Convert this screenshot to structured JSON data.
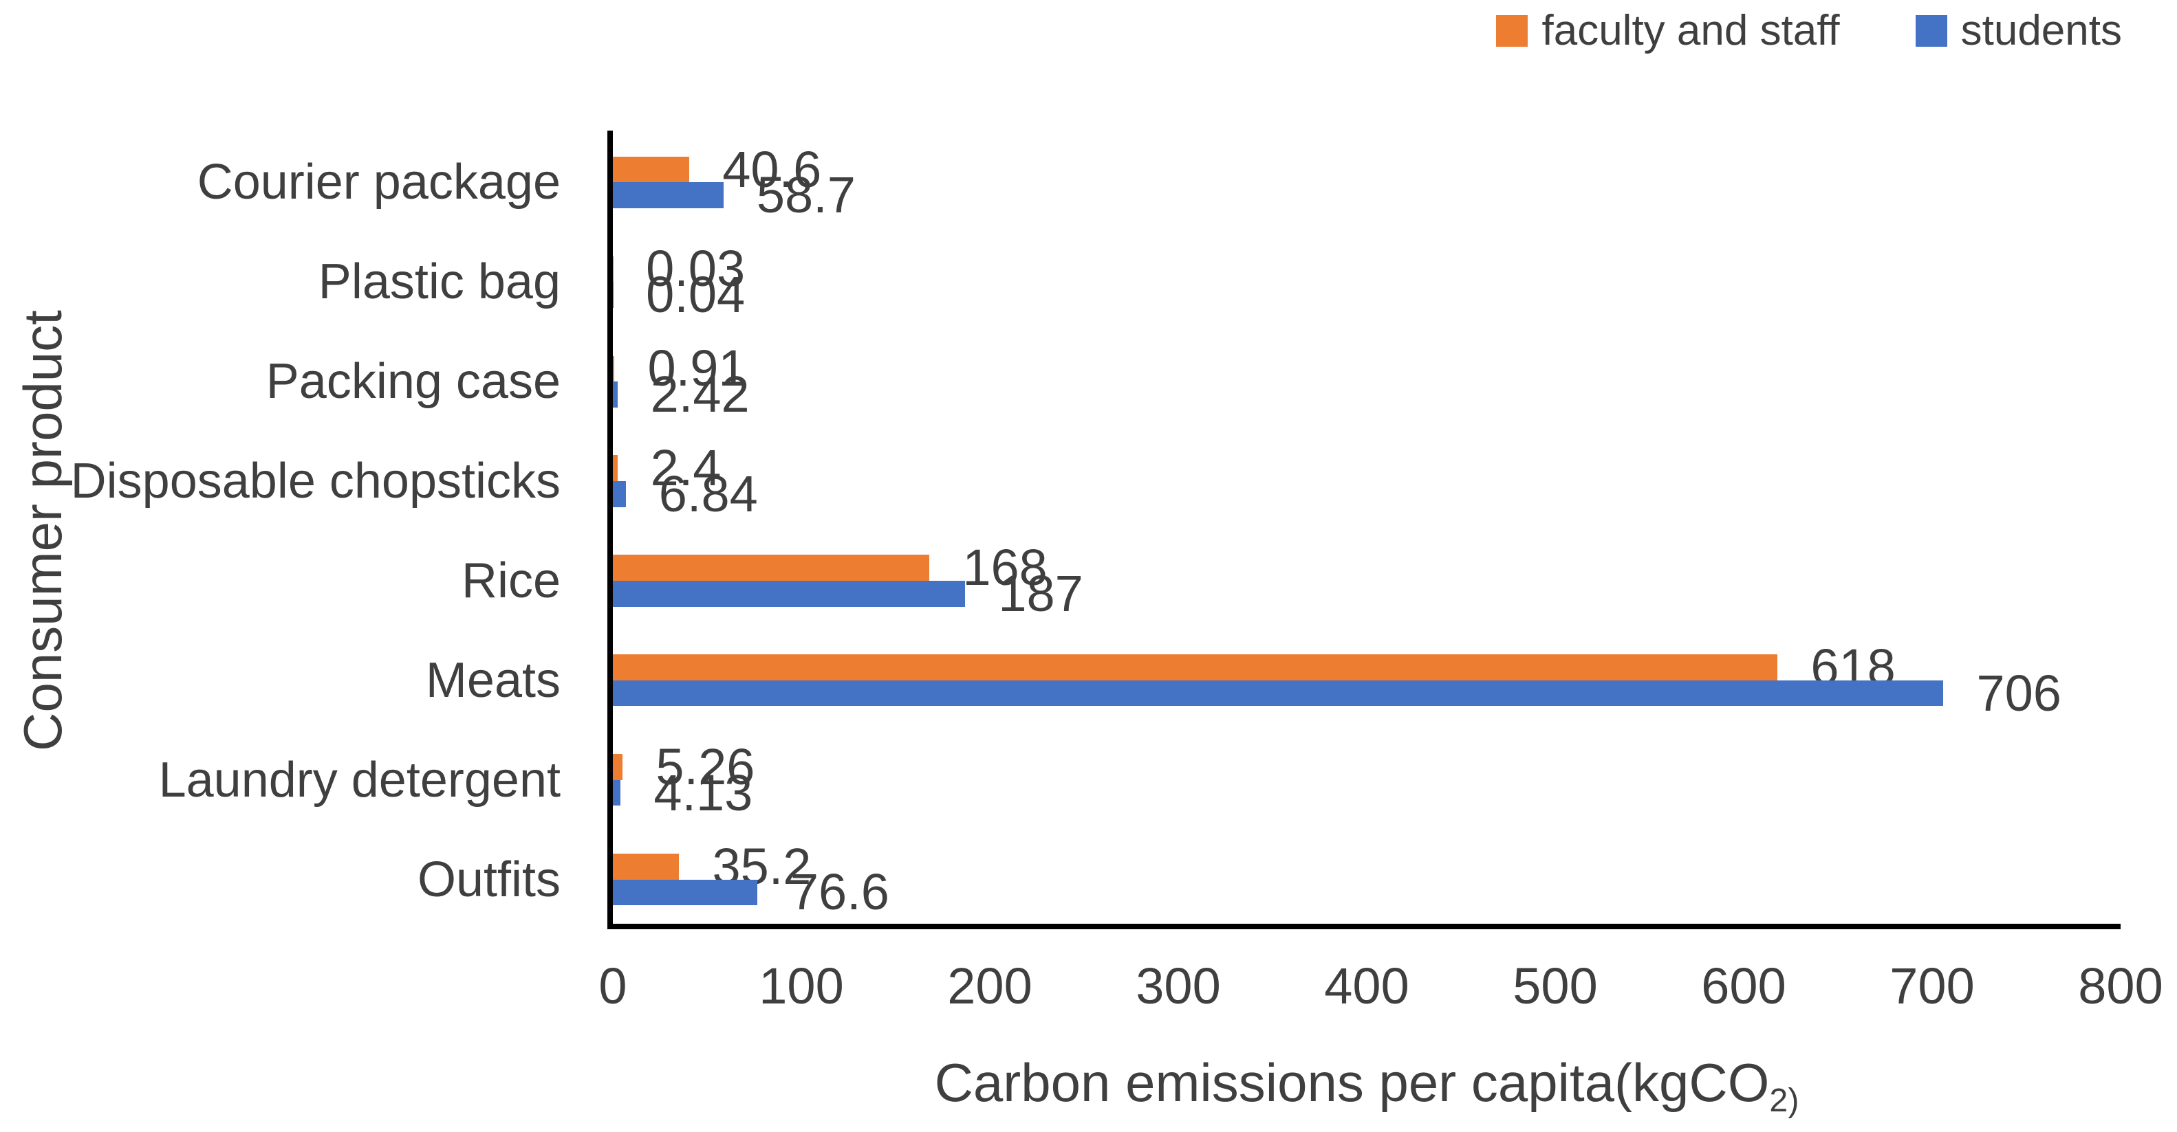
{
  "chart_data": {
    "type": "bar",
    "orientation": "horizontal",
    "title": "",
    "categories": [
      "Courier package",
      "Plastic bag",
      "Packing case",
      "Disposable chopsticks",
      "Rice",
      "Meats",
      "Laundry detergent",
      "Outfits"
    ],
    "series": [
      {
        "name": "faculty and staff",
        "color": "#ED7D31",
        "values": [
          40.6,
          0.03,
          0.91,
          2.4,
          168,
          618,
          5.26,
          35.2
        ],
        "labels": [
          "40.6",
          "0.03",
          "0.91",
          "2.4",
          "168",
          "618",
          "5.26",
          "35.2"
        ]
      },
      {
        "name": "students",
        "color": "#4472C4",
        "values": [
          58.7,
          0.04,
          2.42,
          6.84,
          187,
          706,
          4.13,
          76.6
        ],
        "labels": [
          "58.7",
          "0.04",
          "2.42",
          "6.84",
          "187",
          "706",
          "4.13",
          "76.6"
        ]
      }
    ],
    "xlabel": "Carbon emissions per capita(kgCO2)",
    "xlabel_main": "Carbon emissions per capita(kgCO",
    "xlabel_sub": "2)",
    "ylabel": "Consumer product",
    "xlim": [
      0,
      800
    ],
    "xticks": [
      "0",
      "100",
      "200",
      "300",
      "400",
      "500",
      "600",
      "700",
      "800"
    ],
    "grid": false,
    "legend_position": "top-right",
    "colors": {
      "text": "#3F3F3F",
      "axis": "#000000",
      "background": "#FFFFFF"
    }
  }
}
